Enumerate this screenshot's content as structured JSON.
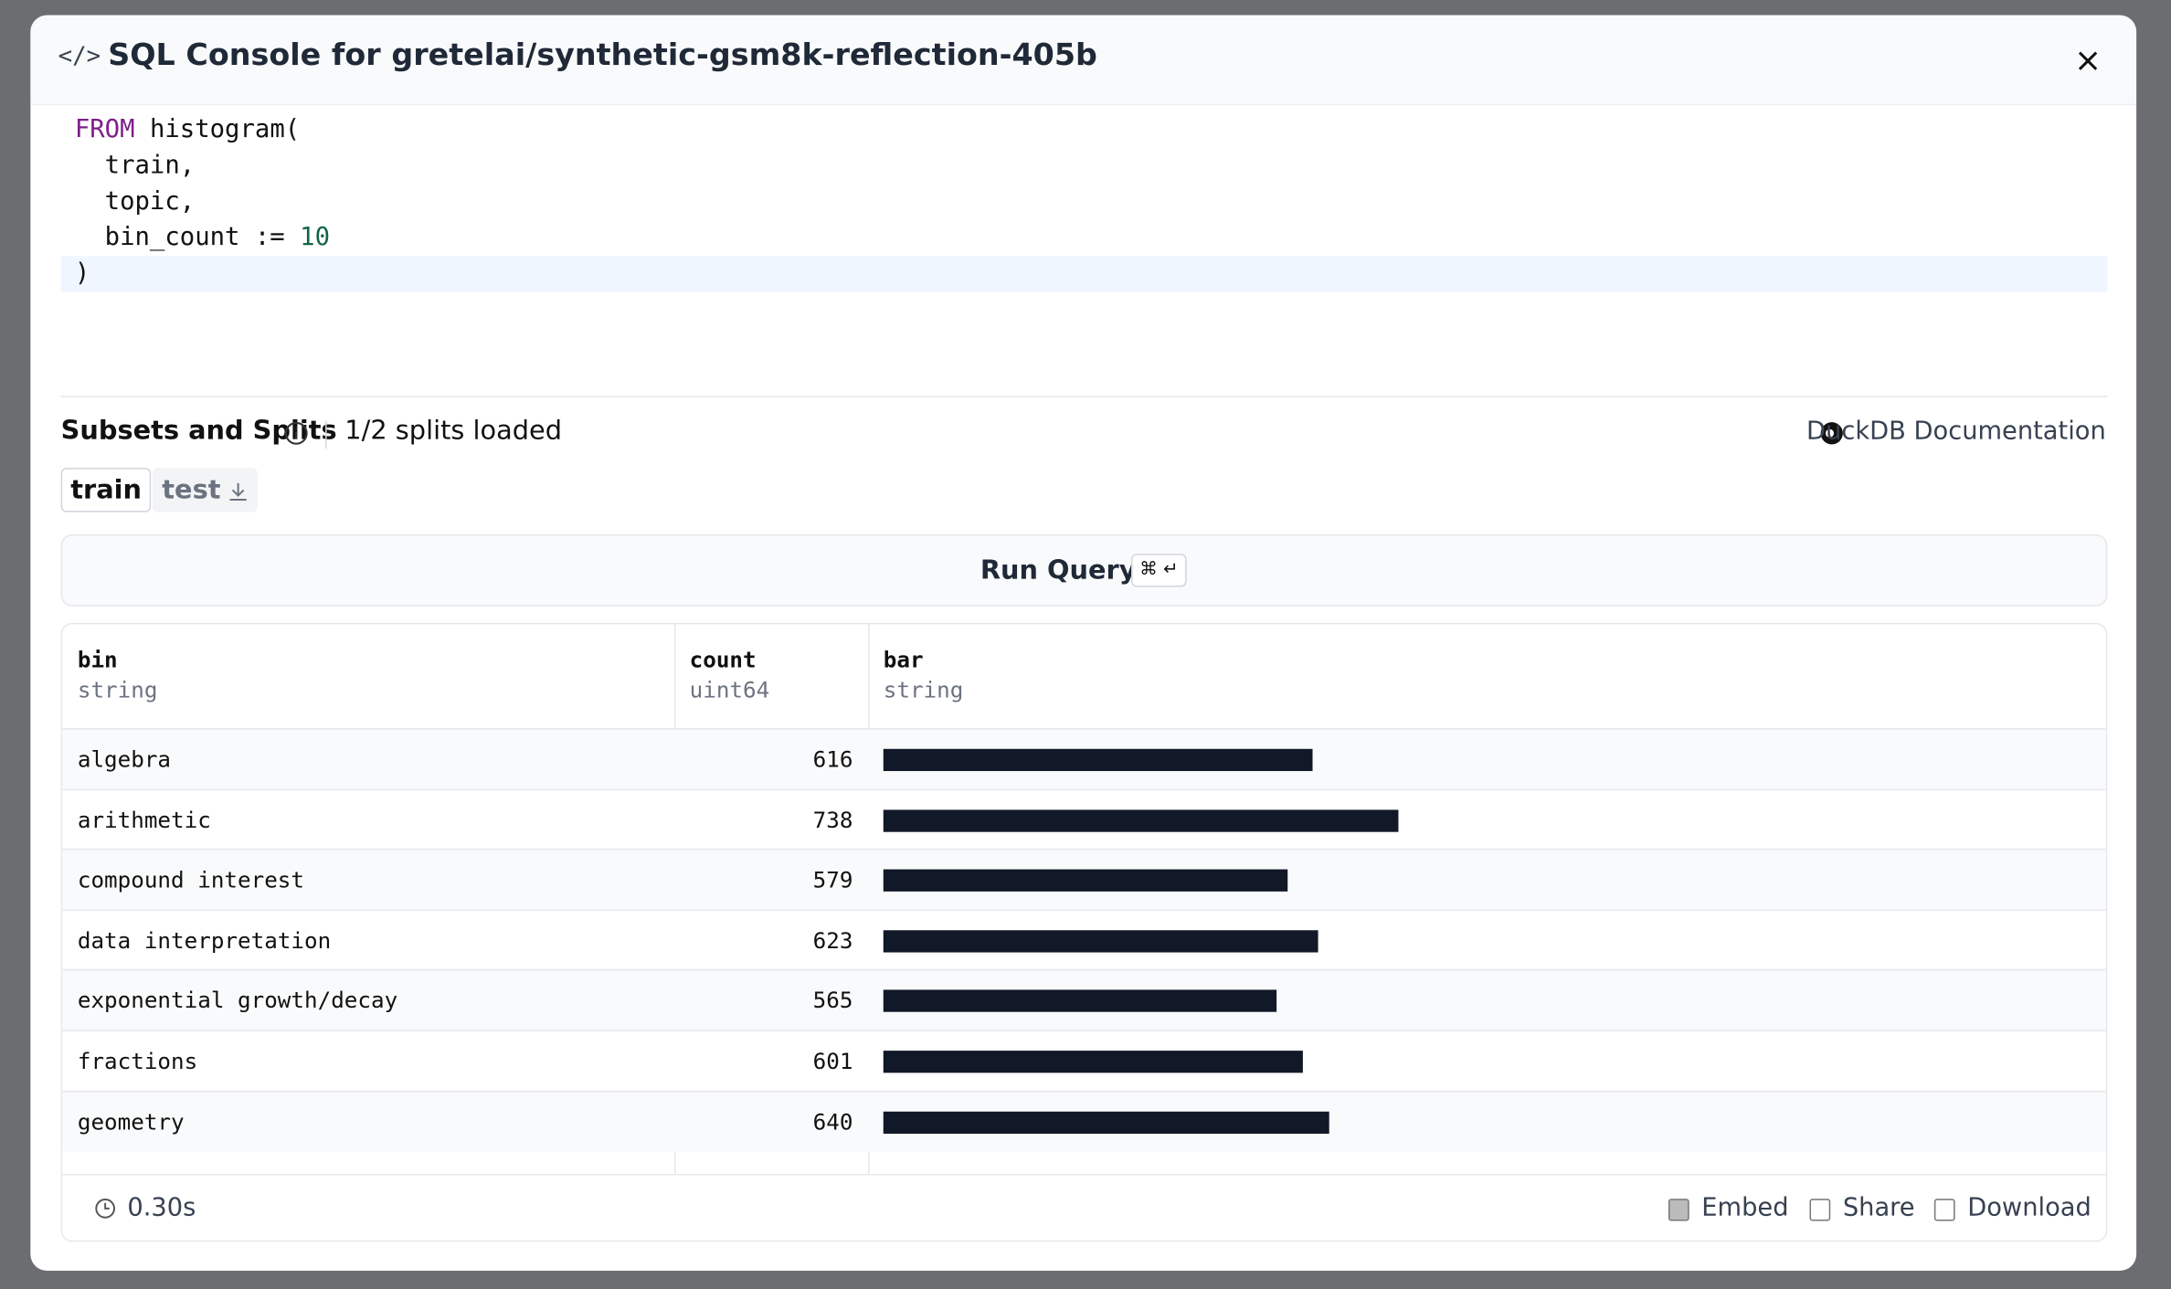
{
  "dialog": {
    "title": "SQL Console for gretelai/synthetic-gsm8k-reflection-405b"
  },
  "query": {
    "lines": [
      [
        {
          "text": "FROM",
          "kind": "keyword"
        },
        {
          "text": " histogram(",
          "kind": "plain"
        }
      ],
      [
        {
          "text": "  train,",
          "kind": "plain"
        }
      ],
      [
        {
          "text": "  topic,",
          "kind": "plain"
        }
      ],
      [
        {
          "text": "  bin_count := ",
          "kind": "plain"
        },
        {
          "text": "10",
          "kind": "number"
        }
      ],
      [
        {
          "text": ")",
          "kind": "plain"
        }
      ]
    ]
  },
  "subsets": {
    "label": "Subsets and Splits",
    "status": "1/2 splits loaded",
    "docs": "DuckDB Documentation",
    "splits": [
      "train",
      "test"
    ]
  },
  "run": {
    "label": "Run Query",
    "shortcut": "⌘ ↵"
  },
  "table": {
    "columns": [
      {
        "name": "bin",
        "type": "string"
      },
      {
        "name": "count",
        "type": "uint64"
      },
      {
        "name": "bar",
        "type": "string"
      }
    ],
    "rows": [
      [
        "algebra",
        616
      ],
      [
        "arithmetic",
        738
      ],
      [
        "compound interest",
        579
      ],
      [
        "data interpretation",
        623
      ],
      [
        "exponential growth/decay",
        565
      ],
      [
        "fractions",
        601
      ],
      [
        "geometry",
        640
      ]
    ]
  },
  "footer": {
    "time": "0.30s",
    "actions": [
      "Embed",
      "Share",
      "Download"
    ]
  }
}
